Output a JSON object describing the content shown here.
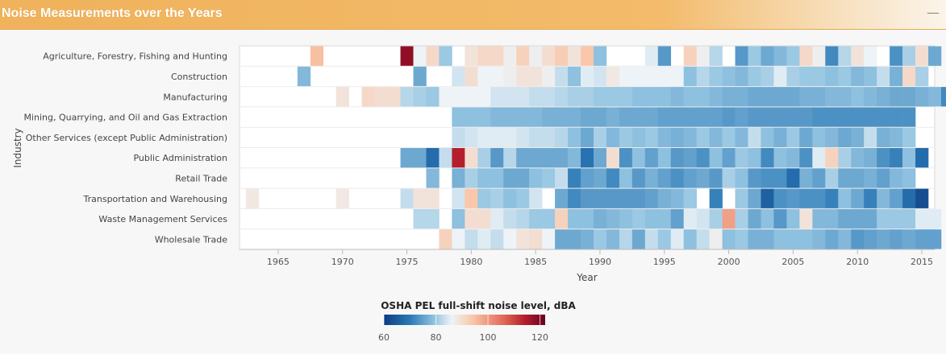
{
  "panel": {
    "title": "Noise Measurements over the Years",
    "collapse_icon": "minus-icon"
  },
  "colors": {
    "header_accent": "#f0b25b",
    "scale_low": "#0d3c82",
    "scale_mid": "#eef3f7",
    "scale_high": "#6b0020"
  },
  "chart_data": {
    "type": "heatmap",
    "title": "",
    "xlabel": "Year",
    "ylabel": "Industry",
    "xlim": [
      1962,
      2016
    ],
    "x_ticks": [
      1965,
      1970,
      1975,
      1980,
      1985,
      1990,
      1995,
      2000,
      2005,
      2010,
      2015
    ],
    "industries": [
      "Agriculture, Forestry, Fishing and Hunting",
      "Construction",
      "Manufacturing",
      "Mining, Quarrying, and Oil and Gas Extraction",
      "Other Services (except Public Administration)",
      "Public Administration",
      "Retail Trade",
      "Transportation and Warehousing",
      "Waste Management Services",
      "Wholesale Trade"
    ],
    "colorbar": {
      "title": "OSHA PEL full-shift noise level, dBA",
      "min": 60,
      "max": 122,
      "ticks": [
        60,
        80,
        100,
        120
      ]
    },
    "rows": [
      {
        "start": 1968,
        "values": [
          95,
          null,
          null,
          null,
          null,
          null,
          null,
          118,
          86,
          91,
          80,
          null,
          89,
          91,
          91,
          87,
          92,
          87,
          90,
          93,
          89,
          94,
          79,
          null,
          null,
          null,
          85,
          74,
          null,
          92,
          87,
          82,
          null,
          74,
          80,
          76,
          78,
          80,
          91,
          87,
          72,
          82,
          89,
          86,
          null,
          73,
          81,
          90,
          76
        ]
      },
      {
        "start": 1967,
        "values": [
          78,
          null,
          null,
          null,
          null,
          null,
          null,
          null,
          null,
          76,
          null,
          null,
          84,
          90,
          86,
          86,
          87,
          89,
          89,
          87,
          83,
          79,
          85,
          84,
          88,
          86,
          86,
          86,
          86,
          86,
          79,
          82,
          80,
          79,
          78,
          80,
          81,
          85,
          81,
          80,
          80,
          79,
          80,
          78,
          79,
          83,
          77,
          91,
          81
        ]
      },
      {
        "start": 1970,
        "values": [
          89,
          null,
          91,
          90,
          90,
          82,
          81,
          80,
          86,
          86,
          86,
          86,
          84,
          84,
          84,
          83,
          83,
          82,
          81,
          81,
          80,
          80,
          80,
          79,
          79,
          79,
          78,
          79,
          79,
          78,
          77,
          77,
          76,
          76,
          76,
          76,
          77,
          77,
          78,
          78,
          79,
          78,
          77,
          76,
          76,
          77,
          78,
          72
        ]
      },
      {
        "start": 1979,
        "values": [
          79,
          79,
          79,
          78,
          78,
          78,
          78,
          77,
          77,
          77,
          76,
          76,
          77,
          76,
          76,
          76,
          75,
          75,
          75,
          75,
          75,
          74,
          75,
          74,
          74,
          74,
          74,
          74,
          73,
          73,
          73,
          73,
          73,
          73,
          73,
          73
        ]
      },
      {
        "start": 1979,
        "values": [
          83,
          84,
          85,
          85,
          85,
          84,
          83,
          83,
          82,
          79,
          76,
          81,
          78,
          80,
          79,
          80,
          78,
          77,
          78,
          80,
          78,
          80,
          78,
          83,
          79,
          77,
          80,
          76,
          79,
          78,
          76,
          77,
          83,
          77,
          78,
          80
        ]
      },
      {
        "start": 1975,
        "values": [
          76,
          76,
          68,
          83,
          114,
          90,
          81,
          74,
          82,
          76,
          76,
          76,
          76,
          78,
          69,
          76,
          90,
          73,
          79,
          75,
          79,
          74,
          75,
          73,
          79,
          75,
          80,
          79,
          72,
          79,
          78,
          73,
          85,
          92,
          81,
          78,
          77,
          73,
          71,
          79,
          68
        ]
      },
      {
        "start": 1977,
        "values": [
          78,
          null,
          77,
          81,
          79,
          79,
          76,
          76,
          79,
          80,
          83,
          71,
          75,
          76,
          72,
          79,
          74,
          77,
          75,
          73,
          75,
          76,
          74,
          81,
          79,
          74,
          73,
          73,
          68,
          77,
          75,
          81,
          76,
          76,
          77,
          75,
          78,
          79
        ]
      },
      {
        "start": 1963,
        "values": [
          88,
          null,
          null,
          null,
          null,
          null,
          null,
          88,
          null,
          null,
          null,
          null,
          83,
          89,
          89,
          null,
          84,
          94,
          80,
          81,
          79,
          80,
          84,
          null,
          76,
          72,
          74,
          74,
          74,
          74,
          74,
          75,
          77,
          78,
          80,
          null,
          71,
          null,
          80,
          76,
          66,
          73,
          74,
          73,
          73,
          71,
          79,
          76,
          71,
          78,
          75,
          68,
          63
        ]
      },
      {
        "start": 1976,
        "values": [
          82,
          82,
          null,
          79,
          90,
          90,
          85,
          83,
          82,
          80,
          80,
          92,
          79,
          79,
          77,
          78,
          79,
          80,
          79,
          79,
          75,
          85,
          84,
          81,
          99,
          81,
          76,
          79,
          74,
          79,
          89,
          78,
          78,
          76,
          76,
          76,
          80,
          80,
          80,
          85,
          85
        ]
      },
      {
        "start": 1978,
        "values": [
          92,
          86,
          83,
          85,
          83,
          86,
          89,
          90,
          86,
          76,
          76,
          77,
          80,
          78,
          82,
          76,
          83,
          80,
          85,
          79,
          83,
          87,
          79,
          80,
          77,
          77,
          79,
          79,
          79,
          78,
          76,
          78,
          74,
          75,
          76,
          75,
          76,
          75,
          75
        ]
      }
    ]
  }
}
